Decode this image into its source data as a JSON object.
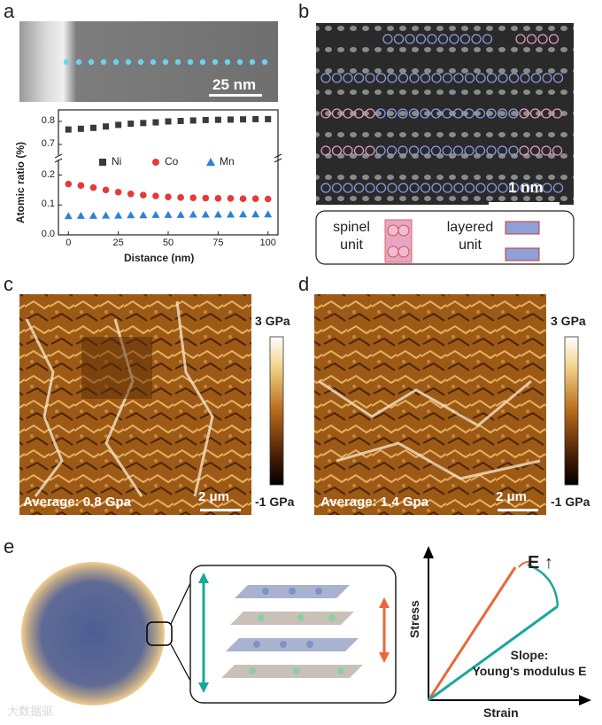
{
  "panels": {
    "a": "a",
    "b": "b",
    "c": "c",
    "d": "d",
    "e": "e"
  },
  "panel_a": {
    "scale_bar": "25 nm"
  },
  "panel_b": {
    "scale_bar": "1 nm",
    "legend": {
      "spinel_line1": "spinel",
      "spinel_line2": "unit",
      "layered_line1": "layered",
      "layered_line2": "unit"
    }
  },
  "panel_c": {
    "average": "Average: 0.8 Gpa",
    "scale_bar": "2 μm",
    "colorbar_max": "3 GPa",
    "colorbar_min": "-1 GPa"
  },
  "panel_d": {
    "average": "Average: 1.4 Gpa",
    "scale_bar": "2 μm",
    "colorbar_max": "3 GPa",
    "colorbar_min": "-1 GPa"
  },
  "panel_e": {
    "y_axis": "Stress",
    "x_axis": "Strain",
    "modulus": "E",
    "arrow": "↑",
    "slope_line1": "Slope:",
    "slope_line2": "Young's modulus E"
  },
  "watermark": "大数据驱",
  "colors": {
    "ni": "#3a3a3a",
    "co": "#e43a3a",
    "mn": "#2f7fd8",
    "orange": "#e8683a",
    "teal": "#1aa79a"
  },
  "chart_data": {
    "type": "scatter",
    "title": "",
    "xlabel": "Distance (nm)",
    "ylabel": "Atomic ratio (%)",
    "xlim": [
      -5,
      105
    ],
    "x_ticks": [
      0,
      25,
      50,
      75,
      100
    ],
    "y_ticks_lower": [
      0.0,
      0.1,
      0.2
    ],
    "y_ticks_upper": [
      0.7,
      0.8
    ],
    "ylim_lower": [
      0.0,
      0.24
    ],
    "ylim_upper": [
      0.65,
      0.85
    ],
    "x": [
      0,
      6.25,
      12.5,
      18.75,
      25,
      31.25,
      37.5,
      43.75,
      50,
      56.25,
      62.5,
      68.75,
      75,
      81.25,
      87.5,
      93.75,
      100
    ],
    "series": [
      {
        "name": "Ni",
        "marker": "square",
        "values": [
          0.765,
          0.768,
          0.772,
          0.778,
          0.785,
          0.79,
          0.793,
          0.796,
          0.8,
          0.802,
          0.804,
          0.806,
          0.807,
          0.808,
          0.809,
          0.81,
          0.81
        ]
      },
      {
        "name": "Co",
        "marker": "circle",
        "values": [
          0.17,
          0.165,
          0.158,
          0.15,
          0.143,
          0.137,
          0.133,
          0.13,
          0.127,
          0.125,
          0.124,
          0.123,
          0.122,
          0.122,
          0.121,
          0.121,
          0.12
        ]
      },
      {
        "name": "Mn",
        "marker": "triangle",
        "values": [
          0.063,
          0.064,
          0.064,
          0.065,
          0.065,
          0.066,
          0.066,
          0.067,
          0.067,
          0.067,
          0.068,
          0.068,
          0.068,
          0.068,
          0.069,
          0.069,
          0.069
        ]
      }
    ]
  }
}
